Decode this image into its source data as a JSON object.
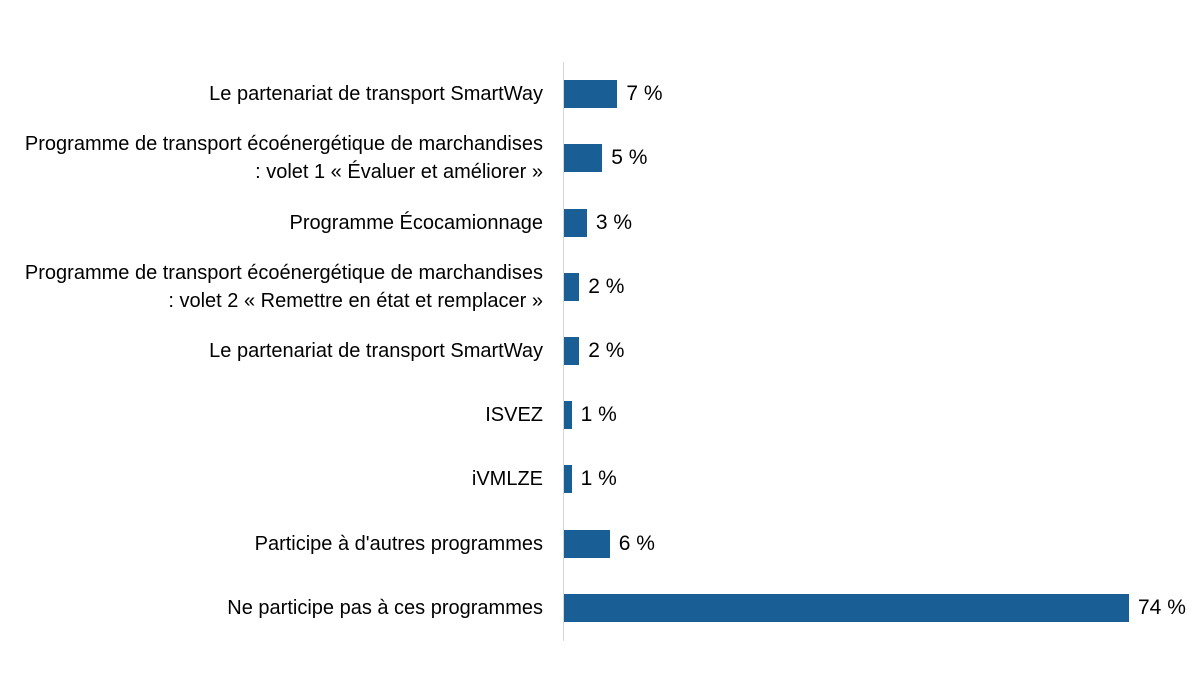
{
  "chart_data": {
    "type": "bar",
    "orientation": "horizontal",
    "title": "",
    "categories": [
      "Le partenariat de transport SmartWay",
      "Programme de transport écoénergétique de marchandises\n: volet 1 « Évaluer et améliorer »",
      "Programme Écocamionnage",
      "Programme de transport écoénergétique de marchandises\n: volet 2 « Remettre en état et remplacer »",
      "Le partenariat de transport SmartWay",
      "ISVEZ",
      "iVMLZE",
      "Participe à d'autres programmes",
      "Ne participe pas à ces programmes"
    ],
    "values": [
      7,
      5,
      3,
      2,
      2,
      1,
      1,
      6,
      74
    ],
    "value_labels": [
      "7 %",
      "5 %",
      "3 %",
      "2 %",
      "2 %",
      "1 %",
      "1 %",
      "6 %",
      "74 %"
    ],
    "unit": "%",
    "xlim": [
      0,
      80
    ],
    "grid": false,
    "legend": "none",
    "colors": {
      "bar": "#1a5e96",
      "axis_line": "#d6d6d6",
      "text": "#000000",
      "background": "#ffffff"
    }
  }
}
